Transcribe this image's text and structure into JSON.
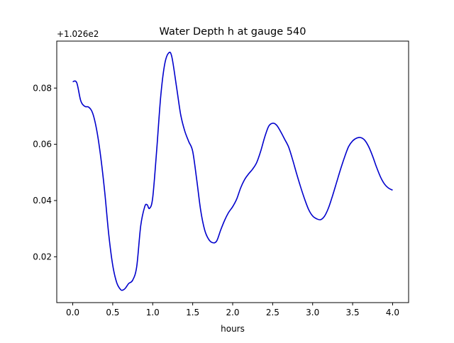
{
  "chart_data": {
    "type": "line",
    "title": "Water Depth h at gauge 540",
    "xlabel": "hours",
    "ylabel": "",
    "offset_label": "+1.026e2",
    "xlim": [
      -0.2,
      4.2
    ],
    "ylim": [
      0.0037,
      0.0967
    ],
    "xticks": [
      0.0,
      0.5,
      1.0,
      1.5,
      2.0,
      2.5,
      3.0,
      3.5,
      4.0
    ],
    "xtick_labels": [
      "0.0",
      "0.5",
      "1.0",
      "1.5",
      "2.0",
      "2.5",
      "3.0",
      "3.5",
      "4.0"
    ],
    "yticks": [
      0.02,
      0.04,
      0.06,
      0.08
    ],
    "ytick_labels": [
      "0.02",
      "0.04",
      "0.06",
      "0.08"
    ],
    "grid": false,
    "series": [
      {
        "color": "#0000cc",
        "x": [
          0.0,
          0.05,
          0.1,
          0.15,
          0.2,
          0.25,
          0.3,
          0.35,
          0.4,
          0.45,
          0.5,
          0.55,
          0.6,
          0.63,
          0.66,
          0.7,
          0.75,
          0.8,
          0.85,
          0.9,
          0.93,
          0.96,
          1.0,
          1.05,
          1.1,
          1.15,
          1.2,
          1.24,
          1.3,
          1.35,
          1.4,
          1.45,
          1.5,
          1.55,
          1.6,
          1.65,
          1.7,
          1.75,
          1.8,
          1.85,
          1.9,
          1.95,
          2.0,
          2.05,
          2.1,
          2.15,
          2.2,
          2.25,
          2.3,
          2.35,
          2.4,
          2.45,
          2.5,
          2.55,
          2.6,
          2.65,
          2.7,
          2.75,
          2.8,
          2.85,
          2.9,
          2.95,
          3.0,
          3.05,
          3.1,
          3.15,
          3.2,
          3.25,
          3.3,
          3.35,
          3.4,
          3.45,
          3.5,
          3.55,
          3.6,
          3.65,
          3.7,
          3.75,
          3.8,
          3.85,
          3.9,
          3.95,
          4.0
        ],
        "y": [
          0.0823,
          0.0819,
          0.0755,
          0.0735,
          0.0732,
          0.071,
          0.065,
          0.0555,
          0.043,
          0.028,
          0.017,
          0.0108,
          0.0083,
          0.0082,
          0.0089,
          0.0105,
          0.0117,
          0.0165,
          0.031,
          0.0378,
          0.0385,
          0.0372,
          0.041,
          0.058,
          0.077,
          0.0885,
          0.0925,
          0.091,
          0.08,
          0.0705,
          0.0648,
          0.061,
          0.0575,
          0.0475,
          0.0365,
          0.0295,
          0.0262,
          0.025,
          0.0256,
          0.0295,
          0.033,
          0.0358,
          0.0378,
          0.0405,
          0.0445,
          0.0475,
          0.0495,
          0.0512,
          0.0535,
          0.0575,
          0.0625,
          0.0664,
          0.0675,
          0.0668,
          0.0645,
          0.0618,
          0.059,
          0.0545,
          0.0495,
          0.0448,
          0.0405,
          0.0368,
          0.0345,
          0.0335,
          0.0332,
          0.0345,
          0.0375,
          0.0418,
          0.0465,
          0.0512,
          0.0555,
          0.0592,
          0.0612,
          0.0622,
          0.0624,
          0.0615,
          0.0592,
          0.0558,
          0.0518,
          0.0483,
          0.0458,
          0.0444,
          0.0437
        ]
      }
    ]
  }
}
